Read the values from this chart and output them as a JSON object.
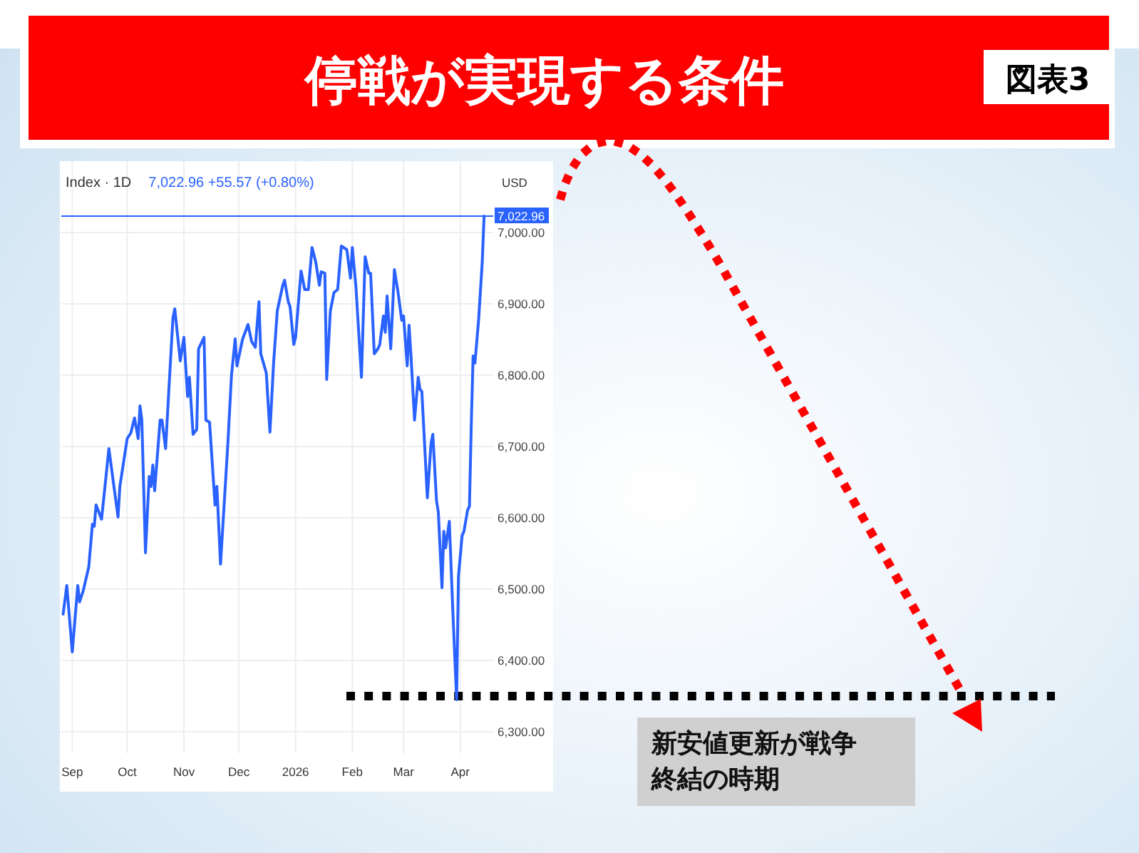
{
  "chart_data": {
    "type": "line",
    "title": "停戦が実現する条件",
    "annotations": [
      "図表3",
      "Index · 1D",
      "7,022.96 +55.57 (+0.80%)"
    ],
    "ylabel": "USD",
    "color": "#2962ff",
    "x": [
      "2025-08-27",
      "2025-08-29",
      "2025-09-01",
      "2025-09-04",
      "2025-09-05",
      "2025-09-07",
      "2025-09-10",
      "2025-09-12",
      "2025-09-13",
      "2025-09-14",
      "2025-09-17",
      "2025-09-21",
      "2025-09-26",
      "2025-09-27",
      "2025-10-01",
      "2025-10-03",
      "2025-10-05",
      "2025-10-07",
      "2025-10-08",
      "2025-10-09",
      "2025-10-11",
      "2025-10-13",
      "2025-10-14",
      "2025-10-15",
      "2025-10-16",
      "2025-10-19",
      "2025-10-20",
      "2025-10-22",
      "2025-10-24",
      "2025-10-26",
      "2025-10-27",
      "2025-10-30",
      "2025-11-01",
      "2025-11-03",
      "2025-11-04",
      "2025-11-06",
      "2025-11-08",
      "2025-11-09",
      "2025-11-12",
      "2025-11-13",
      "2025-11-15",
      "2025-11-18",
      "2025-11-19",
      "2025-11-21",
      "2025-11-25",
      "2025-11-27",
      "2025-11-29",
      "2025-11-30",
      "2025-12-03",
      "2025-12-06",
      "2025-12-08",
      "2025-12-10",
      "2025-12-12",
      "2025-12-13",
      "2025-12-16",
      "2025-12-18",
      "2025-12-20",
      "2025-12-22",
      "2025-12-25",
      "2025-12-26",
      "2025-12-28",
      "2025-12-29",
      "2025-12-31",
      "2026-01-01",
      "2026-01-04",
      "2026-01-06",
      "2026-01-08",
      "2026-01-10",
      "2026-01-12",
      "2026-01-14",
      "2026-01-15",
      "2026-01-17",
      "2026-01-18",
      "2026-01-20",
      "2026-01-22",
      "2026-01-24",
      "2026-01-26",
      "2026-01-29",
      "2026-01-31",
      "2026-02-01",
      "2026-02-03",
      "2026-02-06",
      "2026-02-08",
      "2026-02-10",
      "2026-02-11",
      "2026-02-13",
      "2026-02-15",
      "2026-02-16",
      "2026-02-18",
      "2026-02-19",
      "2026-02-20",
      "2026-02-22",
      "2026-02-24",
      "2026-02-26",
      "2026-02-28",
      "2026-03-01",
      "2026-03-03",
      "2026-03-04",
      "2026-03-05",
      "2026-03-07",
      "2026-03-09",
      "2026-03-10",
      "2026-03-11",
      "2026-03-13",
      "2026-03-14",
      "2026-03-16",
      "2026-03-17",
      "2026-03-19",
      "2026-03-20",
      "2026-03-22",
      "2026-03-23",
      "2026-03-24",
      "2026-03-26",
      "2026-03-28",
      "2026-03-30",
      "2026-03-31",
      "2026-04-02",
      "2026-04-03",
      "2026-04-05",
      "2026-04-06",
      "2026-04-07",
      "2026-04-08",
      "2026-04-09",
      "2026-04-11",
      "2026-04-13",
      "2026-04-14"
    ],
    "values": [
      6465,
      6505,
      6412,
      6505,
      6482,
      6498,
      6531,
      6591,
      6588,
      6618,
      6598,
      6697,
      6601,
      6644,
      6711,
      6719,
      6740,
      6711,
      6757,
      6737,
      6551,
      6658,
      6644,
      6674,
      6638,
      6737,
      6737,
      6697,
      6790,
      6880,
      6893,
      6820,
      6853,
      6770,
      6797,
      6717,
      6724,
      6837,
      6853,
      6737,
      6734,
      6618,
      6644,
      6535,
      6704,
      6800,
      6851,
      6813,
      6850,
      6871,
      6847,
      6839,
      6903,
      6830,
      6803,
      6720,
      6817,
      6890,
      6926,
      6933,
      6903,
      6896,
      6843,
      6853,
      6946,
      6920,
      6920,
      6979,
      6959,
      6926,
      6945,
      6943,
      6794,
      6890,
      6916,
      6920,
      6981,
      6976,
      6936,
      6979,
      6923,
      6797,
      6966,
      6943,
      6943,
      6830,
      6837,
      6843,
      6883,
      6860,
      6911,
      6837,
      6948,
      6916,
      6877,
      6883,
      6813,
      6870,
      6830,
      6737,
      6797,
      6780,
      6777,
      6678,
      6628,
      6704,
      6717,
      6624,
      6608,
      6502,
      6581,
      6558,
      6595,
      6465,
      6345,
      6518,
      6575,
      6581,
      6611,
      6616,
      6730,
      6827,
      6817,
      6877,
      6959,
      7022.96
    ],
    "xlim": [
      "2025-08-26",
      "2026-04-19"
    ],
    "ylim": [
      6270,
      7100
    ],
    "xticks": [
      {
        "value": "2025-09-01",
        "label": "Sep"
      },
      {
        "value": "2025-10-01",
        "label": "Oct"
      },
      {
        "value": "2025-11-01",
        "label": "Nov"
      },
      {
        "value": "2025-12-01",
        "label": "Dec"
      },
      {
        "value": "2026-01-01",
        "label": "2026"
      },
      {
        "value": "2026-02-01",
        "label": "Feb"
      },
      {
        "value": "2026-03-01",
        "label": "Mar"
      },
      {
        "value": "2026-04-01",
        "label": "Apr"
      }
    ],
    "yticks": [
      {
        "value": 6300,
        "label": "6,300.00"
      },
      {
        "value": 6400,
        "label": "6,400.00"
      },
      {
        "value": 6500,
        "label": "6,500.00"
      },
      {
        "value": 6600,
        "label": "6,600.00"
      },
      {
        "value": 6700,
        "label": "6,700.00"
      },
      {
        "value": 6800,
        "label": "6,800.00"
      },
      {
        "value": 6900,
        "label": "6,900.00"
      },
      {
        "value": 7000,
        "label": "7,000.00"
      }
    ],
    "grid": true,
    "ref_lines": [
      {
        "axis": "y",
        "value": 7022.96,
        "label": "7,022.96",
        "color": "#2962ff",
        "line_style": "solid"
      },
      {
        "axis": "y",
        "value": 6350,
        "label": "新安値更新が戦争終結の時期",
        "color": "#000000",
        "line_style": "dotted"
      }
    ]
  }
}
